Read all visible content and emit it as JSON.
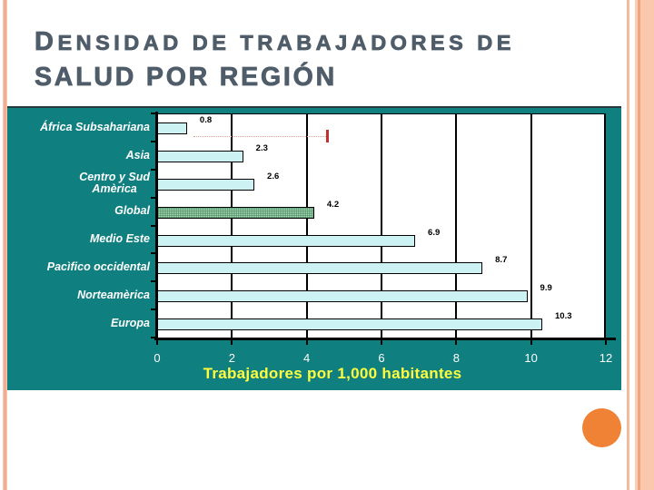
{
  "slide": {
    "title": {
      "text": "Densidad de trabajadores de salud por región",
      "line1_initial": "D",
      "line1_rest": "ensidad de trabajadores de",
      "line2": "salud por región",
      "color": "#4f5c69"
    },
    "decorations": {
      "orange_circle_color": "#f08235",
      "left_stripe_color": "#f2b294",
      "right_band_color": "#f9c8ad"
    }
  },
  "chart_data": {
    "type": "bar",
    "orientation": "horizontal",
    "categories": [
      "África Subsahariana",
      "Asia",
      "Centro y Sud\nAmèrica",
      "Global",
      "Medio Este",
      "Pacìfico occidental",
      "Norteamèrica",
      "Europa"
    ],
    "values": [
      0.8,
      2.3,
      2.6,
      4.2,
      6.9,
      8.7,
      9.9,
      10.3
    ],
    "value_labels": [
      "0.8",
      "2.3",
      "2.6",
      "4.2",
      "6.9",
      "8.7",
      "9.9",
      "10.3"
    ],
    "xlabel": "Trabajadores por 1,000 habitantes",
    "xlim": [
      0,
      12
    ],
    "xticks": [
      0,
      2,
      4,
      6,
      8,
      10,
      12
    ],
    "grid": true,
    "chart_bg": "#0f7f80",
    "plot_bg": "#ffffff",
    "bar_fill": "#cdf2f3",
    "highlight_index": 3,
    "highlight_fill": "#a8dcb5",
    "tick_label_color": "#ffffff",
    "xlabel_color": "#ffff3d",
    "annotation": {
      "row": 0,
      "from_x": 0.97,
      "to_x": 4.52,
      "line_color": "#e2a093",
      "end_color": "#c03030"
    }
  }
}
